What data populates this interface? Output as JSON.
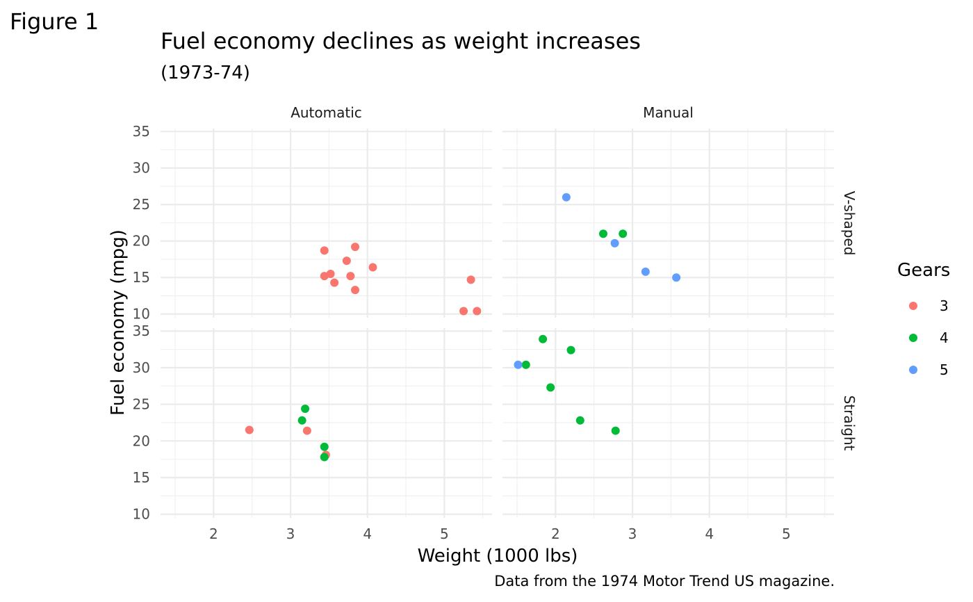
{
  "figure_label": "Figure 1",
  "chart_data": {
    "type": "scatter",
    "title": "Fuel economy declines as weight increases",
    "subtitle": "(1973-74)",
    "xlabel": "Weight (1000 lbs)",
    "ylabel": "Fuel economy (mpg)",
    "caption": "Data from the 1974 Motor Trend US magazine.",
    "xlim": [
      1.31,
      5.62
    ],
    "ylim": [
      9.5,
      35.4
    ],
    "x_ticks": [
      2,
      3,
      4,
      5
    ],
    "y_ticks": [
      10,
      15,
      20,
      25,
      30,
      35
    ],
    "grid": true,
    "legend": {
      "title": "Gears",
      "placement": "right",
      "entries": [
        {
          "label": "3",
          "color": "#F8766D"
        },
        {
          "label": "4",
          "color": "#00BA38"
        },
        {
          "label": "5",
          "color": "#619CFF"
        }
      ]
    },
    "facet_columns": [
      "Automatic",
      "Manual"
    ],
    "facet_rows": [
      "V-shaped",
      "Straight"
    ],
    "panels": [
      {
        "column": "Automatic",
        "row": "V-shaped",
        "points": [
          {
            "x": 3.44,
            "y": 18.7,
            "gear": "3"
          },
          {
            "x": 3.84,
            "y": 19.2,
            "gear": "3"
          },
          {
            "x": 3.73,
            "y": 17.3,
            "gear": "3"
          },
          {
            "x": 4.07,
            "y": 16.4,
            "gear": "3"
          },
          {
            "x": 3.52,
            "y": 15.5,
            "gear": "3"
          },
          {
            "x": 3.44,
            "y": 15.2,
            "gear": "3"
          },
          {
            "x": 3.78,
            "y": 15.2,
            "gear": "3"
          },
          {
            "x": 3.57,
            "y": 14.3,
            "gear": "3"
          },
          {
            "x": 3.84,
            "y": 13.3,
            "gear": "3"
          },
          {
            "x": 5.345,
            "y": 14.7,
            "gear": "3"
          },
          {
            "x": 5.25,
            "y": 10.4,
            "gear": "3"
          },
          {
            "x": 5.424,
            "y": 10.4,
            "gear": "3"
          }
        ]
      },
      {
        "column": "Manual",
        "row": "V-shaped",
        "points": [
          {
            "x": 2.14,
            "y": 26.0,
            "gear": "5"
          },
          {
            "x": 2.62,
            "y": 21.0,
            "gear": "4"
          },
          {
            "x": 2.875,
            "y": 21.0,
            "gear": "4"
          },
          {
            "x": 2.77,
            "y": 19.7,
            "gear": "5"
          },
          {
            "x": 3.17,
            "y": 15.8,
            "gear": "5"
          },
          {
            "x": 3.57,
            "y": 15.0,
            "gear": "5"
          }
        ]
      },
      {
        "column": "Automatic",
        "row": "Straight",
        "points": [
          {
            "x": 2.465,
            "y": 21.5,
            "gear": "3"
          },
          {
            "x": 3.215,
            "y": 21.4,
            "gear": "3"
          },
          {
            "x": 3.46,
            "y": 18.1,
            "gear": "3"
          },
          {
            "x": 3.19,
            "y": 24.4,
            "gear": "4"
          },
          {
            "x": 3.15,
            "y": 22.8,
            "gear": "4"
          },
          {
            "x": 3.44,
            "y": 19.2,
            "gear": "4"
          },
          {
            "x": 3.44,
            "y": 17.8,
            "gear": "4"
          }
        ]
      },
      {
        "column": "Manual",
        "row": "Straight",
        "points": [
          {
            "x": 1.835,
            "y": 33.9,
            "gear": "4"
          },
          {
            "x": 2.2,
            "y": 32.4,
            "gear": "4"
          },
          {
            "x": 1.615,
            "y": 30.4,
            "gear": "4"
          },
          {
            "x": 1.935,
            "y": 27.3,
            "gear": "4"
          },
          {
            "x": 2.32,
            "y": 22.8,
            "gear": "4"
          },
          {
            "x": 2.78,
            "y": 21.4,
            "gear": "4"
          },
          {
            "x": 1.513,
            "y": 30.4,
            "gear": "5"
          }
        ]
      }
    ]
  }
}
